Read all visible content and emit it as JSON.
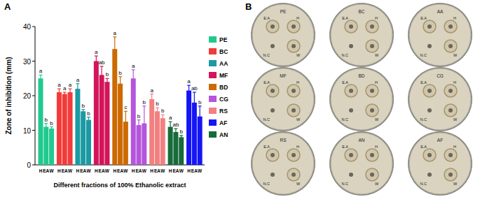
{
  "chart_data": {
    "type": "bar",
    "panel_label": "A",
    "x_label": "Different fractions of 100% Ethanolic extract",
    "y_label": "Zone of inhibition  (mm)",
    "categories": [
      "H",
      "EA",
      "W"
    ],
    "ylim": [
      0,
      40
    ],
    "yticks": [
      0,
      10,
      20,
      30,
      40
    ],
    "grid": false,
    "legend": "right",
    "series": [
      {
        "name": "PE",
        "color": "#22c98f",
        "values": [
          25,
          11,
          10.5
        ],
        "errors": [
          1,
          1,
          0.5
        ],
        "letters": [
          "a",
          "b",
          "b"
        ]
      },
      {
        "name": "BC",
        "color": "#f23b3b",
        "values": [
          21,
          20.5,
          21
        ],
        "errors": [
          1,
          0.5,
          1
        ],
        "letters": [
          "a",
          "a",
          "a"
        ]
      },
      {
        "name": "AA",
        "color": "#1c9aa3",
        "values": [
          22,
          15.5,
          13
        ],
        "errors": [
          1.5,
          0.5,
          0.8
        ],
        "letters": [
          "a",
          "b",
          "b"
        ]
      },
      {
        "name": "MF",
        "color": "#d4145a",
        "values": [
          30,
          26,
          24
        ],
        "errors": [
          1.5,
          2.5,
          1
        ],
        "letters": [
          "a",
          "ab",
          "b"
        ]
      },
      {
        "name": "BD",
        "color": "#cc6a00",
        "values": [
          33.5,
          23.5,
          12.5
        ],
        "errors": [
          3.5,
          2,
          3
        ],
        "letters": [
          "a",
          "b",
          "c"
        ]
      },
      {
        "name": "CG",
        "color": "#b455db",
        "values": [
          25,
          11.5,
          12
        ],
        "errors": [
          2.5,
          1.5,
          5
        ],
        "letters": [
          "a",
          "b",
          "b"
        ]
      },
      {
        "name": "RS",
        "color": "#f28080",
        "values": [
          19,
          15.5,
          13.5
        ],
        "errors": [
          1.5,
          1,
          1
        ],
        "letters": [
          "a",
          "b",
          "b"
        ]
      },
      {
        "name": "AN",
        "color": "#176b3a",
        "values": [
          11,
          9.5,
          8
        ],
        "errors": [
          1.5,
          1,
          0.5
        ],
        "letters": [
          "a",
          "ab",
          "b"
        ]
      },
      {
        "name": "AF",
        "color": "#1515f5",
        "values": [
          21.5,
          18,
          14
        ],
        "errors": [
          1.5,
          3,
          3
        ],
        "letters": [
          "a",
          "ab",
          "b"
        ]
      }
    ],
    "legend_order": [
      "PE",
      "BC",
      "AA",
      "MF",
      "BD",
      "CG",
      "RS",
      "AF",
      "AN"
    ]
  },
  "panel_b": {
    "label": "B",
    "dishes": [
      {
        "name": "PE",
        "wells": [
          "E.A",
          "H",
          "N.C",
          "W"
        ]
      },
      {
        "name": "BC",
        "wells": [
          "E.A",
          "H",
          "N.C",
          "W"
        ]
      },
      {
        "name": "AA",
        "wells": [
          "E.A",
          "H",
          "N.C",
          "W"
        ]
      },
      {
        "name": "MF",
        "wells": [
          "E.A",
          "H",
          "N.C",
          "W"
        ]
      },
      {
        "name": "BD",
        "wells": [
          "E.A",
          "H",
          "N.C",
          "W"
        ]
      },
      {
        "name": "CG",
        "wells": [
          "E.A",
          "H",
          "N.C",
          "W"
        ]
      },
      {
        "name": "RS",
        "wells": [
          "E.A",
          "H",
          "N.C",
          "W"
        ]
      },
      {
        "name": "AN",
        "wells": [
          "E.A",
          "H",
          "N.C",
          "W"
        ]
      },
      {
        "name": "AF",
        "wells": [
          "E.A",
          "H",
          "N.C",
          "W"
        ]
      }
    ]
  }
}
